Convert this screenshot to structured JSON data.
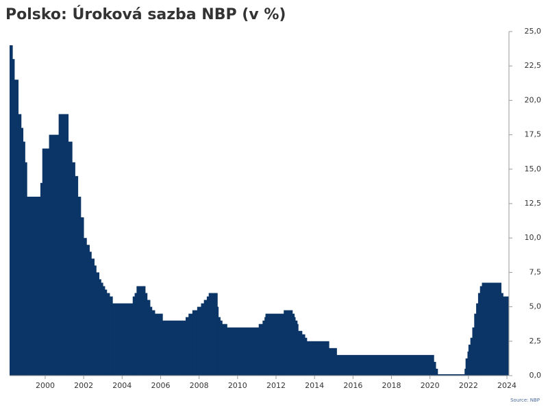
{
  "chart_data": {
    "type": "step-area",
    "title": "Polsko: Úroková sazba NBP (v %)",
    "source": "Source: NBP",
    "color": "#0a3566",
    "x": [
      1998.15,
      1998.3,
      1998.4,
      1998.6,
      1998.75,
      1998.85,
      1998.95,
      1999.05,
      1999.75,
      1999.85,
      2000.2,
      2000.7,
      2001.2,
      2001.4,
      2001.55,
      2001.7,
      2001.85,
      2002.0,
      2002.15,
      2002.3,
      2002.4,
      2002.55,
      2002.65,
      2002.8,
      2002.9,
      2003.0,
      2003.1,
      2003.2,
      2003.35,
      2003.5,
      2004.55,
      2004.65,
      2004.75,
      2005.2,
      2005.3,
      2005.45,
      2005.55,
      2005.7,
      2006.1,
      2007.3,
      2007.45,
      2007.65,
      2007.9,
      2008.1,
      2008.25,
      2008.4,
      2008.5,
      2008.95,
      2009.0,
      2009.1,
      2009.2,
      2009.45,
      2011.1,
      2011.3,
      2011.4,
      2011.45,
      2012.4,
      2012.85,
      2012.95,
      2013.0,
      2013.1,
      2013.15,
      2013.35,
      2013.5,
      2013.6,
      2014.75,
      2015.15,
      2020.2,
      2020.3,
      2020.4,
      2021.8,
      2021.85,
      2021.95,
      2022.0,
      2022.1,
      2022.2,
      2022.3,
      2022.4,
      2022.5,
      2022.6,
      2022.7,
      2023.7,
      2023.8
    ],
    "values": [
      24.0,
      23.0,
      21.5,
      19.0,
      18.0,
      17.0,
      15.5,
      13.0,
      14.0,
      16.5,
      17.5,
      19.0,
      17.0,
      15.5,
      14.5,
      13.0,
      11.5,
      10.0,
      9.5,
      9.0,
      8.5,
      8.0,
      7.5,
      7.0,
      6.75,
      6.5,
      6.25,
      6.0,
      5.75,
      5.25,
      5.75,
      6.0,
      6.5,
      6.0,
      5.5,
      5.0,
      4.75,
      4.5,
      4.0,
      4.25,
      4.5,
      4.75,
      5.0,
      5.25,
      5.5,
      5.75,
      6.0,
      5.0,
      4.25,
      4.0,
      3.75,
      3.5,
      3.75,
      4.0,
      4.25,
      4.5,
      4.75,
      4.5,
      4.25,
      4.0,
      3.75,
      3.25,
      3.0,
      2.75,
      2.5,
      2.0,
      1.5,
      1.0,
      0.5,
      0.1,
      0.5,
      1.25,
      1.75,
      2.25,
      2.75,
      3.5,
      4.5,
      5.25,
      6.0,
      6.5,
      6.75,
      6.0,
      5.75
    ],
    "xlim": [
      1998.15,
      2024.07
    ],
    "xticks": [
      2000,
      2002,
      2004,
      2006,
      2008,
      2010,
      2012,
      2014,
      2016,
      2018,
      2020,
      2022,
      2024
    ],
    "ylim": [
      0,
      25
    ],
    "yticks": [
      {
        "value": 0,
        "label": "0,0"
      },
      {
        "value": 2.5,
        "label": "2,5"
      },
      {
        "value": 5,
        "label": "5,0"
      },
      {
        "value": 7.5,
        "label": "7,5"
      },
      {
        "value": 10,
        "label": "10,0"
      },
      {
        "value": 12.5,
        "label": "12,5"
      },
      {
        "value": 15,
        "label": "15,0"
      },
      {
        "value": 17.5,
        "label": "17,5"
      },
      {
        "value": 20,
        "label": "20,0"
      },
      {
        "value": 22.5,
        "label": "22,5"
      },
      {
        "value": 25,
        "label": "25,0"
      }
    ]
  }
}
